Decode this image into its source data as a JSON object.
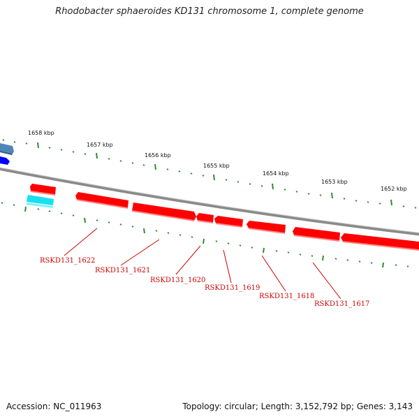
{
  "title": "Rhodobacter sphaeroides KD131 chromosome 1, complete genome",
  "accession": "Accession: NC_011963",
  "topology": "Topology: circular; Length: 3,152,792 bp; Genes: 3,143",
  "colors": {
    "backbone": "#8a8a8a",
    "tick": "#2e8b2e",
    "gene_fwd": "#ff0000",
    "gene_fwd_shadow": "#ff8080",
    "label": "#cc0000",
    "blue_dark": "#0000ff",
    "blue_steel": "#4f86b8",
    "cyan": "#18e0ee"
  },
  "scale_labels": [
    "1658 kbp",
    "1657 kbp",
    "1656 kbp",
    "1655 kbp",
    "1654 kbp",
    "1653 kbp",
    "1652 kbp"
  ],
  "genes": [
    {
      "label": "RSKD131_1622"
    },
    {
      "label": "RSKD131_1621"
    },
    {
      "label": "RSKD131_1620"
    },
    {
      "label": "RSKD131_1619"
    },
    {
      "label": "RSKD131_1618"
    },
    {
      "label": "RSKD131_1617"
    }
  ]
}
